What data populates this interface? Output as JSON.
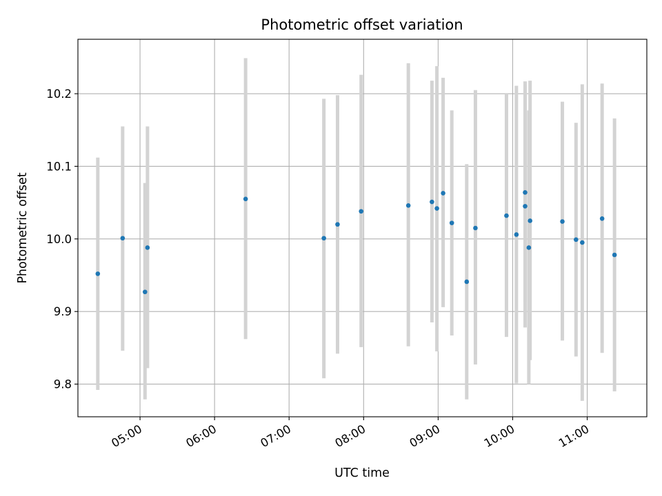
{
  "chart_data": {
    "type": "scatter",
    "title": "Photometric offset variation",
    "xlabel": "UTC time",
    "ylabel": "Photometric offset",
    "x_unit": "UTC time (HH:MM)",
    "xlim": [
      "04:10",
      "11:48"
    ],
    "ylim": [
      9.755,
      10.275
    ],
    "x_ticks": [
      "05:00",
      "06:00",
      "07:00",
      "08:00",
      "09:00",
      "10:00",
      "11:00"
    ],
    "y_ticks": [
      9.8,
      9.9,
      10.0,
      10.1,
      10.2
    ],
    "y_tick_labels": [
      "9.8",
      "9.9",
      "10.0",
      "10.1",
      "10.2"
    ],
    "grid": true,
    "marker_color": "#1f77b4",
    "errorbar_color": "#d3d3d3",
    "points": [
      {
        "x": "04:26",
        "y": 9.952,
        "ymin": 9.792,
        "ymax": 10.112
      },
      {
        "x": "04:46",
        "y": 10.001,
        "ymin": 9.846,
        "ymax": 10.155
      },
      {
        "x": "05:04",
        "y": 9.927,
        "ymin": 9.779,
        "ymax": 10.077
      },
      {
        "x": "05:06",
        "y": 9.988,
        "ymin": 9.822,
        "ymax": 10.155
      },
      {
        "x": "06:25",
        "y": 10.055,
        "ymin": 9.862,
        "ymax": 10.249
      },
      {
        "x": "07:28",
        "y": 10.001,
        "ymin": 9.808,
        "ymax": 10.193
      },
      {
        "x": "07:39",
        "y": 10.02,
        "ymin": 9.842,
        "ymax": 10.198
      },
      {
        "x": "07:58",
        "y": 10.038,
        "ymin": 9.851,
        "ymax": 10.226
      },
      {
        "x": "08:36",
        "y": 10.046,
        "ymin": 9.852,
        "ymax": 10.242
      },
      {
        "x": "08:55",
        "y": 10.051,
        "ymin": 9.885,
        "ymax": 10.218
      },
      {
        "x": "08:59",
        "y": 10.042,
        "ymin": 9.845,
        "ymax": 10.238
      },
      {
        "x": "09:04",
        "y": 10.063,
        "ymin": 9.906,
        "ymax": 10.222
      },
      {
        "x": "09:11",
        "y": 10.022,
        "ymin": 9.867,
        "ymax": 10.177
      },
      {
        "x": "09:23",
        "y": 9.941,
        "ymin": 9.779,
        "ymax": 10.103
      },
      {
        "x": "09:30",
        "y": 10.015,
        "ymin": 9.827,
        "ymax": 10.205
      },
      {
        "x": "09:55",
        "y": 10.032,
        "ymin": 9.865,
        "ymax": 10.2
      },
      {
        "x": "10:03",
        "y": 10.006,
        "ymin": 9.801,
        "ymax": 10.211
      },
      {
        "x": "10:10",
        "y": 10.064,
        "ymin": 9.912,
        "ymax": 10.217
      },
      {
        "x": "10:10",
        "y": 10.045,
        "ymin": 9.878,
        "ymax": 10.212
      },
      {
        "x": "10:13",
        "y": 9.988,
        "ymin": 9.8,
        "ymax": 10.177
      },
      {
        "x": "10:14",
        "y": 10.025,
        "ymin": 9.833,
        "ymax": 10.218
      },
      {
        "x": "10:40",
        "y": 10.024,
        "ymin": 9.86,
        "ymax": 10.189
      },
      {
        "x": "10:51",
        "y": 9.999,
        "ymin": 9.838,
        "ymax": 10.16
      },
      {
        "x": "10:56",
        "y": 9.995,
        "ymin": 9.777,
        "ymax": 10.213
      },
      {
        "x": "11:12",
        "y": 10.028,
        "ymin": 9.843,
        "ymax": 10.214
      },
      {
        "x": "11:22",
        "y": 9.978,
        "ymin": 9.79,
        "ymax": 10.166
      }
    ]
  }
}
